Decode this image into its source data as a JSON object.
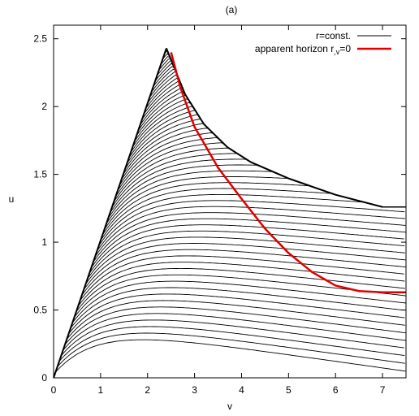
{
  "chart_data": {
    "type": "line",
    "title": "(a)",
    "xlabel": "v",
    "ylabel": "u",
    "xlim": [
      0,
      7.5
    ],
    "ylim": [
      0,
      2.6
    ],
    "x_ticks": [
      "0",
      "1",
      "2",
      "3",
      "4",
      "5",
      "6",
      "7"
    ],
    "y_ticks": [
      "0",
      "0.5",
      "1",
      "1.5",
      "2",
      "2.5"
    ],
    "grid": false,
    "legend_position": "top-right",
    "series": [
      {
        "name": "r=const.",
        "color": "#000000",
        "description_of_family": "family of constant-r contours",
        "lines": [
          {
            "x": [
              0.0,
              2.4
            ],
            "y": [
              0.0,
              2.43
            ]
          },
          {
            "x": [
              2.4,
              2.8,
              3.2,
              3.7,
              4.2,
              5.0,
              6.0,
              7.0
            ],
            "y": [
              2.43,
              2.09,
              1.87,
              1.7,
              1.59,
              1.47,
              1.35,
              1.26
            ]
          }
        ]
      },
      {
        "name": "apparent horizon r,v=0",
        "color": "#e00000",
        "x": [
          2.5,
          2.7,
          3.0,
          3.5,
          4.0,
          4.5,
          5.0,
          5.5,
          6.0,
          6.5,
          7.0,
          7.5
        ],
        "y": [
          2.4,
          2.14,
          1.85,
          1.55,
          1.32,
          1.1,
          0.92,
          0.78,
          0.68,
          0.64,
          0.63,
          0.63
        ]
      }
    ],
    "legend": {
      "entries": [
        "r=const.",
        "apparent horizon r"
      ],
      "entry2_suffix": ",v",
      "entry2_tail": "=0"
    }
  }
}
